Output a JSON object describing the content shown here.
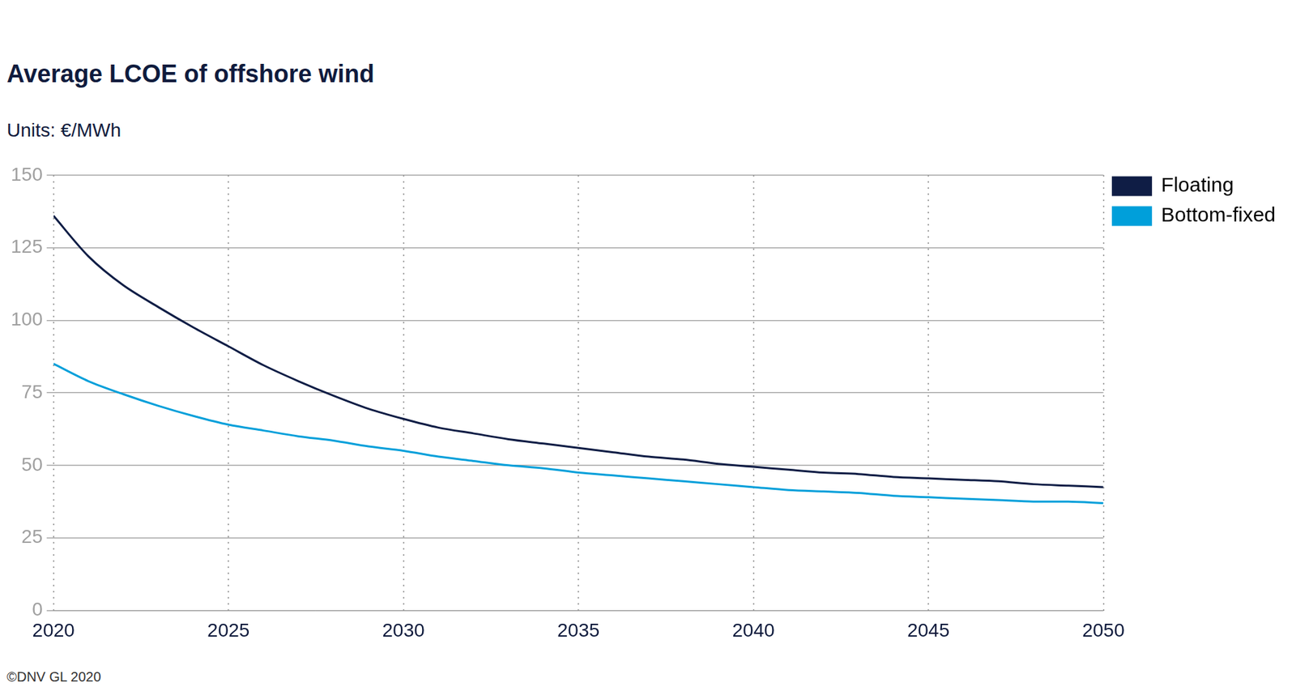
{
  "chart_data": {
    "type": "line",
    "title": "Average LCOE of offshore wind",
    "subtitle": "Units: €/MWh",
    "annotation": "©DNV GL 2020",
    "x": [
      2020,
      2021,
      2022,
      2023,
      2024,
      2025,
      2026,
      2027,
      2028,
      2029,
      2030,
      2031,
      2032,
      2033,
      2034,
      2035,
      2036,
      2037,
      2038,
      2039,
      2040,
      2041,
      2042,
      2043,
      2044,
      2045,
      2046,
      2047,
      2048,
      2049,
      2050
    ],
    "series": [
      {
        "name": "Floating",
        "color": "#0f1d45",
        "values": [
          136,
          122,
          112,
          104.5,
          97.5,
          91,
          84.5,
          79,
          74,
          69.5,
          66,
          63,
          61,
          59,
          57.5,
          56,
          54.5,
          53,
          52,
          50.5,
          49.5,
          48.5,
          47.5,
          47,
          46,
          45.5,
          45,
          44.5,
          43.5,
          43,
          42.5
        ]
      },
      {
        "name": "Bottom-fixed",
        "color": "#009fda",
        "values": [
          85,
          79,
          74.5,
          70.5,
          67,
          64,
          62,
          60,
          58.5,
          56.5,
          55,
          53,
          51.5,
          50,
          49,
          47.5,
          46.5,
          45.5,
          44.5,
          43.5,
          42.5,
          41.5,
          41,
          40.5,
          39.5,
          39,
          38.5,
          38,
          37.5,
          37.5,
          37
        ]
      }
    ],
    "xlim": [
      2020,
      2050
    ],
    "xticks": [
      2020,
      2025,
      2030,
      2035,
      2040,
      2045,
      2050
    ],
    "ylim": [
      0,
      150
    ],
    "yticks": [
      0,
      25,
      50,
      75,
      100,
      125,
      150
    ],
    "grid": true,
    "legend": "right"
  }
}
